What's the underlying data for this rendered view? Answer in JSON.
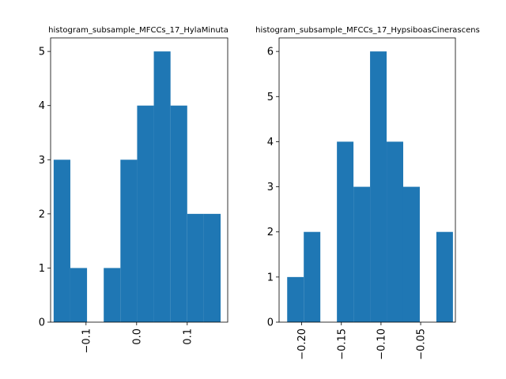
{
  "chart_data": [
    {
      "type": "bar",
      "subtype": "histogram",
      "title": "histogram_subsample_MFCCs_17_HylaMinuta",
      "color": "#1f77b4",
      "xlim": [
        -0.17,
        0.18
      ],
      "ylim": [
        0,
        5.25
      ],
      "bin_edges": [
        -0.164,
        -0.131,
        -0.098,
        -0.065,
        -0.032,
        0.001,
        0.034,
        0.067,
        0.1,
        0.133,
        0.166
      ],
      "values": [
        3,
        1,
        0,
        1,
        3,
        4,
        5,
        4,
        2,
        2
      ],
      "xticks": [
        -0.1,
        0.0,
        0.1
      ],
      "xtick_labels": [
        "−0.1",
        "0.0",
        "0.1"
      ],
      "yticks": [
        0,
        1,
        2,
        3,
        4,
        5
      ],
      "ytick_labels": [
        "0",
        "1",
        "2",
        "3",
        "4",
        "5"
      ],
      "xtick_rotation": "vertical",
      "grid": false,
      "xlabel": "",
      "ylabel": ""
    },
    {
      "type": "bar",
      "subtype": "histogram",
      "title": "histogram_subsample_MFCCs_17_HypsiboasCinerascens",
      "color": "#1f77b4",
      "xlim": [
        -0.2285,
        -0.0062
      ],
      "ylim": [
        0,
        6.3
      ],
      "bin_edges": [
        -0.2183,
        -0.1974,
        -0.1765,
        -0.1556,
        -0.1347,
        -0.1138,
        -0.0929,
        -0.072,
        -0.0511,
        -0.0302,
        -0.0093
      ],
      "values": [
        1,
        2,
        0,
        4,
        3,
        6,
        4,
        3,
        0,
        2
      ],
      "xticks": [
        -0.2,
        -0.15,
        -0.1,
        -0.05
      ],
      "xtick_labels": [
        "−0.20",
        "−0.15",
        "−0.10",
        "−0.05"
      ],
      "yticks": [
        0,
        1,
        2,
        3,
        4,
        5,
        6
      ],
      "ytick_labels": [
        "0",
        "1",
        "2",
        "3",
        "4",
        "5",
        "6"
      ],
      "xtick_rotation": "vertical",
      "grid": false,
      "xlabel": "",
      "ylabel": ""
    }
  ]
}
